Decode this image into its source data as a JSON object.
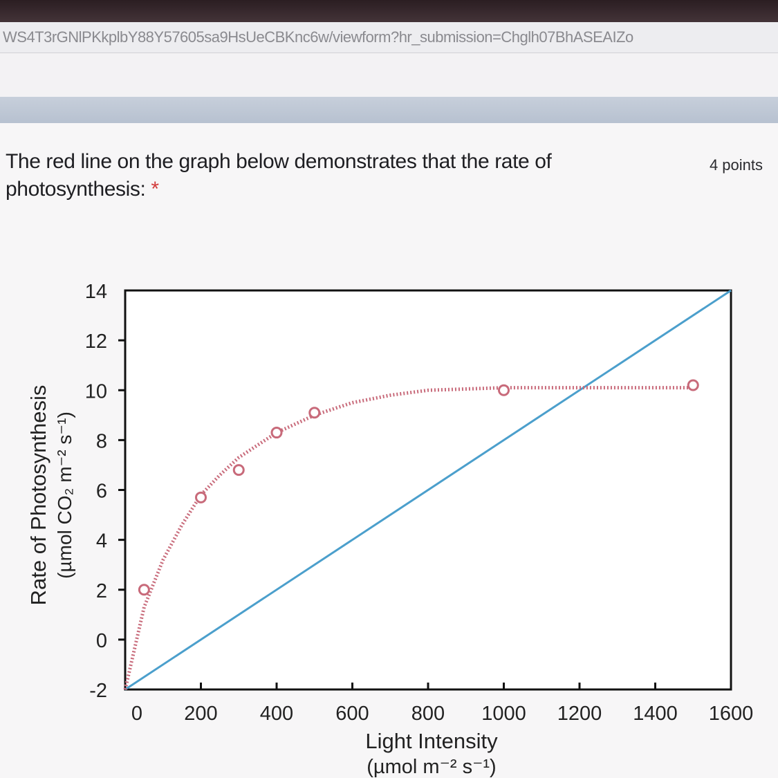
{
  "browser": {
    "url": "WS4T3rGNlPKkplbY88Y57605sa9HsUeCBKnc6w/viewform?hr_submission=Chglh07BhASEAIZo"
  },
  "question": {
    "text": "The red line on the graph below demonstrates that the rate of photosynthesis:",
    "required_marker": "*",
    "points": "4 points"
  },
  "colors": {
    "red_series": "#c86a7a",
    "blue_series": "#4b9fcc",
    "axis": "#111111"
  },
  "chart_data": {
    "type": "line",
    "xlabel": "Light Intensity",
    "xunits": "(µmol m⁻² s⁻¹)",
    "ylabel": "Rate of Photosynthesis",
    "yunits": "(µmol CO₂ m⁻² s⁻¹)",
    "xlim": [
      0,
      1600
    ],
    "ylim": [
      -2,
      14
    ],
    "xticks": [
      0,
      200,
      400,
      600,
      800,
      1000,
      1200,
      1400,
      1600
    ],
    "yticks": [
      -2,
      0,
      2,
      4,
      6,
      8,
      10,
      12,
      14
    ],
    "grid": false,
    "series": [
      {
        "color": "red",
        "style": "dotted-with-circles",
        "curve": [
          [
            0,
            -2
          ],
          [
            50,
            1.3
          ],
          [
            100,
            3.2
          ],
          [
            150,
            4.6
          ],
          [
            200,
            5.8
          ],
          [
            250,
            6.6
          ],
          [
            300,
            7.3
          ],
          [
            350,
            7.8
          ],
          [
            400,
            8.3
          ],
          [
            500,
            9.0
          ],
          [
            600,
            9.5
          ],
          [
            700,
            9.8
          ],
          [
            800,
            10.0
          ],
          [
            1000,
            10.1
          ],
          [
            1500,
            10.1
          ]
        ],
        "points": [
          [
            50,
            2.0
          ],
          [
            200,
            5.7
          ],
          [
            300,
            6.8
          ],
          [
            400,
            8.3
          ],
          [
            500,
            9.1
          ],
          [
            1000,
            10.0
          ],
          [
            1500,
            10.2
          ]
        ]
      },
      {
        "color": "blue",
        "style": "solid",
        "points": [
          [
            0,
            -2
          ],
          [
            1600,
            14
          ]
        ]
      }
    ]
  }
}
